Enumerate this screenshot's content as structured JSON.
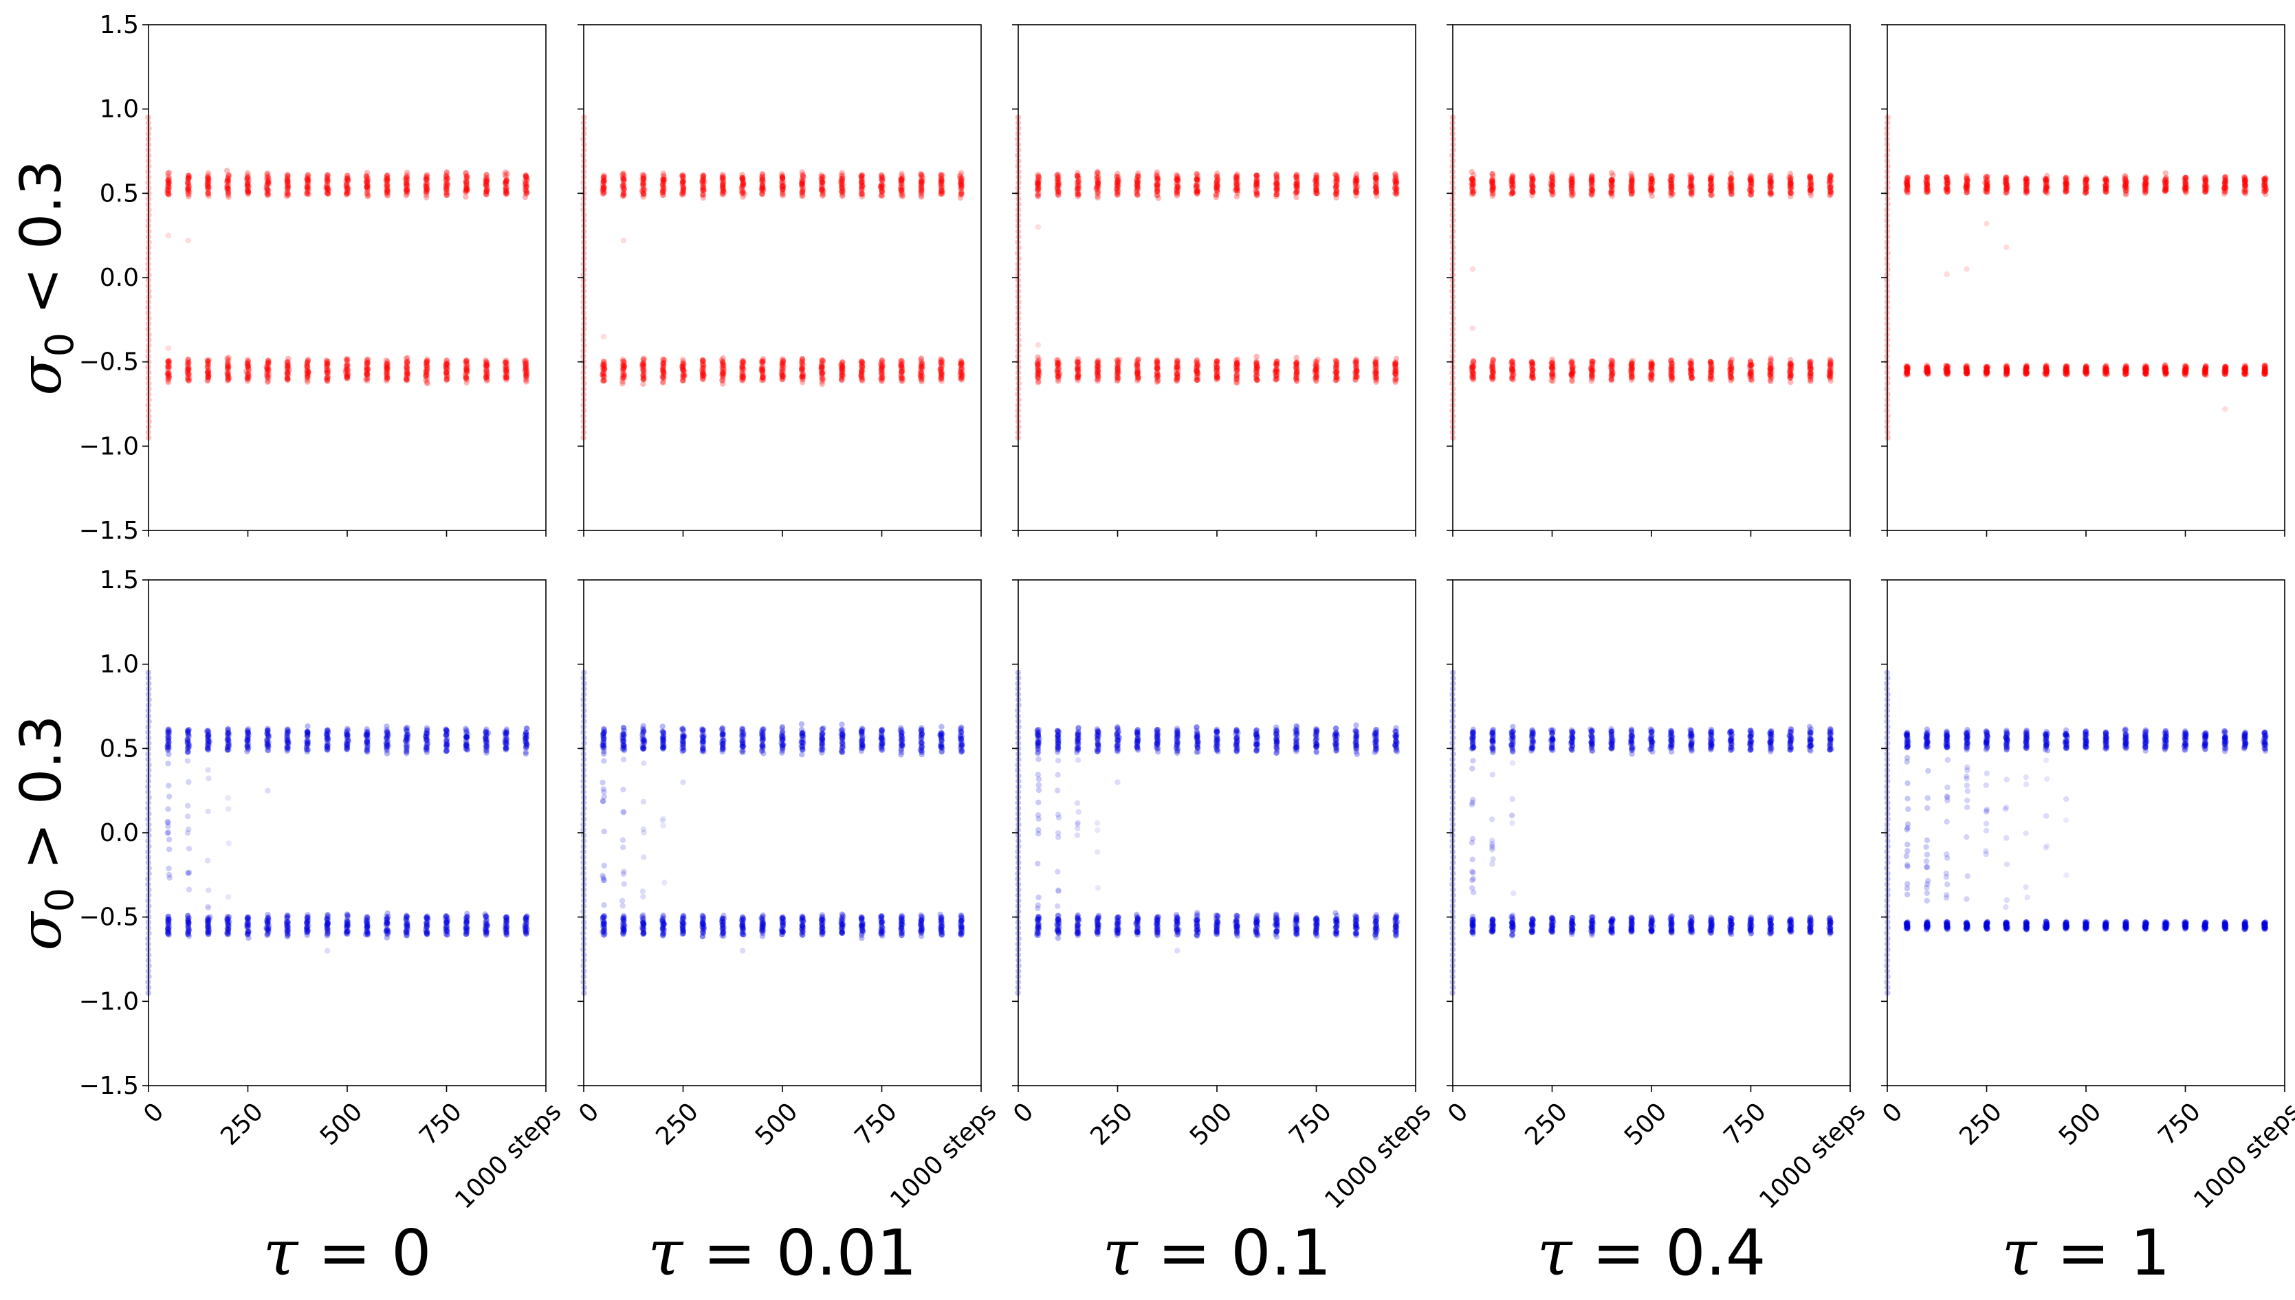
{
  "chart_data": {
    "type": "scatter",
    "layout": "2 rows x 5 columns of scatter panels sharing axes",
    "x_axis": {
      "range": [
        0,
        1000
      ],
      "ticks": [
        0,
        250,
        500,
        750,
        1000
      ],
      "tick_labels": [
        "0",
        "250",
        "500",
        "750",
        "1000 steps"
      ],
      "tick_label_rotation_deg": 45
    },
    "y_axis": {
      "range": [
        -1.5,
        1.5
      ],
      "ticks": [
        1.5,
        1.0,
        0.5,
        0.0,
        -0.5,
        -1.0,
        -1.5
      ],
      "tick_labels": [
        "1.5",
        "1.0",
        "0.5",
        "0.0",
        "−0.5",
        "−1.0",
        "−1.5"
      ]
    },
    "grid": false,
    "row_labels": [
      "σ₀ < 0.3",
      "σ₀ > 0.3"
    ],
    "row_label_parts": [
      {
        "sym": "σ",
        "sub": "0",
        "rest": " < 0.3"
      },
      {
        "sym": "σ",
        "sub": "0",
        "rest": " > 0.3"
      }
    ],
    "column_labels": [
      "τ = 0",
      "τ = 0.01",
      "τ = 0.1",
      "τ = 0.4",
      "τ = 1"
    ],
    "colors": {
      "row_0": "#ff0000",
      "row_1": "#0000dd"
    },
    "snapshot_steps": [
      0,
      50,
      100,
      150,
      200,
      250,
      300,
      350,
      400,
      450,
      500,
      550,
      600,
      650,
      700,
      750,
      800,
      850,
      900,
      950
    ],
    "initial_spread": [
      -0.95,
      0.95
    ],
    "cluster_centers": [
      0.55,
      -0.55
    ],
    "panels": [
      {
        "row": 0,
        "col": 0,
        "upper_halfwidth": 0.06,
        "lower_halfwidth": 0.06,
        "transient_steps": 0,
        "outliers": [
          [
            50,
            0.25
          ],
          [
            100,
            0.22
          ],
          [
            50,
            -0.42
          ]
        ]
      },
      {
        "row": 0,
        "col": 1,
        "upper_halfwidth": 0.06,
        "lower_halfwidth": 0.06,
        "transient_steps": 0,
        "outliers": [
          [
            100,
            0.22
          ],
          [
            50,
            -0.35
          ]
        ]
      },
      {
        "row": 0,
        "col": 2,
        "upper_halfwidth": 0.06,
        "lower_halfwidth": 0.06,
        "transient_steps": 0,
        "outliers": [
          [
            50,
            0.3
          ],
          [
            50,
            -0.4
          ]
        ]
      },
      {
        "row": 0,
        "col": 3,
        "upper_halfwidth": 0.055,
        "lower_halfwidth": 0.055,
        "transient_steps": 0,
        "outliers": [
          [
            50,
            0.05
          ],
          [
            50,
            -0.3
          ]
        ]
      },
      {
        "row": 0,
        "col": 4,
        "upper_halfwidth": 0.045,
        "lower_halfwidth": 0.025,
        "transient_steps": 0,
        "outliers": [
          [
            200,
            0.05
          ],
          [
            300,
            0.18
          ],
          [
            250,
            0.32
          ],
          [
            850,
            -0.78
          ],
          [
            150,
            0.02
          ]
        ]
      },
      {
        "row": 1,
        "col": 0,
        "upper_halfwidth": 0.065,
        "lower_halfwidth": 0.055,
        "transient_steps": 200,
        "outliers": [
          [
            450,
            -0.7
          ],
          [
            300,
            0.25
          ]
        ]
      },
      {
        "row": 1,
        "col": 1,
        "upper_halfwidth": 0.065,
        "lower_halfwidth": 0.055,
        "transient_steps": 200,
        "outliers": [
          [
            400,
            -0.7
          ],
          [
            250,
            0.3
          ]
        ]
      },
      {
        "row": 1,
        "col": 2,
        "upper_halfwidth": 0.065,
        "lower_halfwidth": 0.055,
        "transient_steps": 200,
        "outliers": [
          [
            400,
            -0.7
          ],
          [
            250,
            0.3
          ]
        ]
      },
      {
        "row": 1,
        "col": 3,
        "upper_halfwidth": 0.06,
        "lower_halfwidth": 0.045,
        "transient_steps": 150,
        "outliers": [
          [
            150,
            0.2
          ]
        ]
      },
      {
        "row": 1,
        "col": 4,
        "upper_halfwidth": 0.05,
        "lower_halfwidth": 0.02,
        "transient_steps": 450,
        "outliers": [
          [
            400,
            0.1
          ],
          [
            450,
            0.2
          ]
        ]
      }
    ]
  }
}
